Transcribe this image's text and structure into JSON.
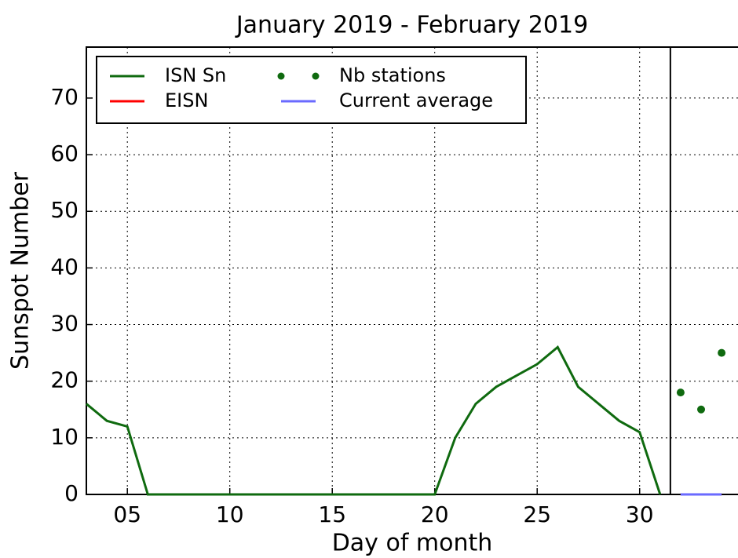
{
  "chart_data": {
    "type": "line",
    "title": "January 2019 - February 2019",
    "xlabel": "Day of month",
    "ylabel": "Sunspot Number",
    "xlim": [
      3,
      34.8
    ],
    "ylim": [
      0,
      79
    ],
    "xticks": [
      {
        "value": 5,
        "label": "05"
      },
      10,
      15,
      20,
      25,
      30
    ],
    "yticks": [
      0,
      10,
      20,
      30,
      40,
      50,
      60,
      70
    ],
    "grid": true,
    "legend": "upper left",
    "vline": 31.5,
    "series": [
      {
        "name": "ISN Sn",
        "color": "#0f6a0f",
        "style": "line",
        "x": [
          3,
          4,
          5,
          6,
          7,
          8,
          9,
          10,
          11,
          12,
          13,
          14,
          15,
          16,
          17,
          18,
          19,
          20,
          21,
          22,
          23,
          24,
          25,
          26,
          27,
          28,
          29,
          30,
          31
        ],
        "values": [
          16,
          13,
          12,
          0,
          0,
          0,
          0,
          0,
          0,
          0,
          0,
          0,
          0,
          0,
          0,
          0,
          0,
          0,
          10,
          16,
          19,
          21,
          23,
          26,
          19,
          16,
          13,
          11,
          0
        ]
      },
      {
        "name": "EISN",
        "color": "#ff0000",
        "style": "line",
        "x": [
          32,
          33,
          34
        ],
        "values": [
          0,
          0,
          0
        ]
      },
      {
        "name": "Nb stations",
        "color": "#0f6a0f",
        "style": "markers",
        "x": [
          32,
          33,
          34
        ],
        "values": [
          18,
          15,
          25
        ]
      },
      {
        "name": "Current average",
        "color": "#6a6aff",
        "style": "line",
        "x": [
          32,
          33,
          34
        ],
        "values": [
          0,
          0,
          0
        ]
      }
    ]
  }
}
